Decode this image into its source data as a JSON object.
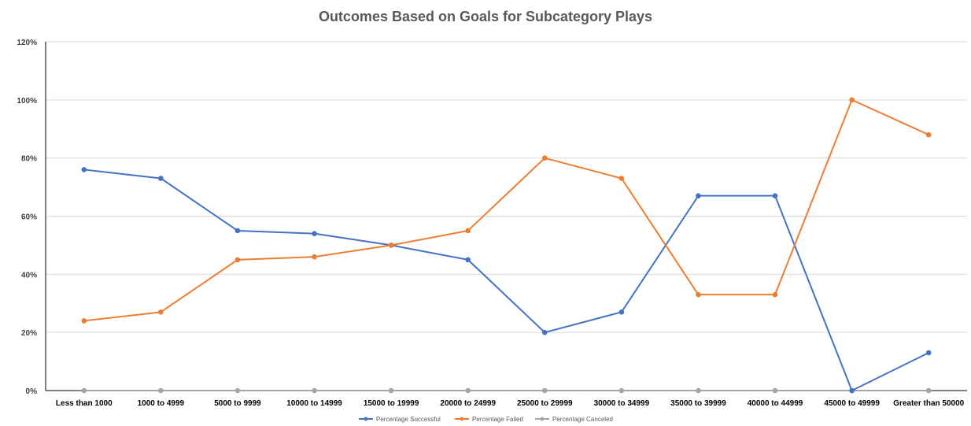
{
  "chart_data": {
    "type": "line",
    "title": "Outcomes Based on Goals for Subcategory Plays",
    "xlabel": "",
    "ylabel": "",
    "ylim": [
      0,
      120
    ],
    "yticks": [
      0,
      20,
      40,
      60,
      80,
      100,
      120
    ],
    "ytick_labels": [
      "0%",
      "20%",
      "40%",
      "60%",
      "80%",
      "100%",
      "120%"
    ],
    "grid": true,
    "legend_position": "bottom",
    "categories": [
      "Less than 1000",
      "1000 to 4999",
      "5000 to 9999",
      "10000 to 14999",
      "15000 to 19999",
      "20000 to 24999",
      "25000 to 29999",
      "30000 to 34999",
      "35000 to 39999",
      "40000 to 44999",
      "45000 to 49999",
      "Greater than 50000"
    ],
    "series": [
      {
        "name": "Percentage Successful",
        "color": "#4472c4",
        "values": [
          76,
          73,
          55,
          54,
          50,
          45,
          20,
          27,
          67,
          67,
          0,
          13
        ]
      },
      {
        "name": "Percentage Failed",
        "color": "#ed7d31",
        "values": [
          24,
          27,
          45,
          46,
          50,
          55,
          80,
          73,
          33,
          33,
          100,
          88
        ]
      },
      {
        "name": "Percentage Canceled",
        "color": "#a5a5a5",
        "values": [
          0,
          0,
          0,
          0,
          0,
          0,
          0,
          0,
          0,
          0,
          0,
          0
        ]
      }
    ]
  }
}
